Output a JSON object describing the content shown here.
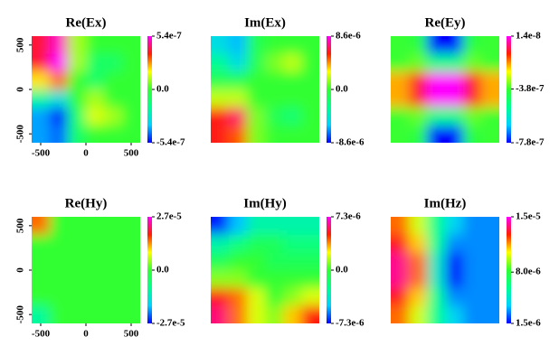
{
  "chart_data": [
    {
      "type": "heatmap",
      "title": "Re(Ex)",
      "xlim": [
        -600,
        600
      ],
      "ylim": [
        -600,
        600
      ],
      "xticks": [
        -500,
        0,
        500
      ],
      "yticks": [
        -500,
        0,
        500
      ],
      "zlim": [
        -5.4e-07,
        5.4e-07
      ],
      "zticks": [
        {
          "value": 5.4e-07,
          "label": "5.4e-7"
        },
        {
          "value": 0,
          "label": "0.0"
        },
        {
          "value": -5.4e-07,
          "label": "-5.4e-7"
        }
      ],
      "colormap": [
        "#0000ff",
        "#00d0ff",
        "#00ff90",
        "#33ff33",
        "#ffff00",
        "#ff2000",
        "#ff00ff"
      ],
      "z": [
        [
          4e-07,
          5e-07,
          1e-07,
          0,
          0,
          0
        ],
        [
          4e-07,
          5.4e-07,
          1e-07,
          -1e-07,
          -1e-07,
          0
        ],
        [
          2e-07,
          3e-07,
          0,
          -1e-07,
          0,
          0
        ],
        [
          -2e-07,
          -3e-07,
          0,
          1e-07,
          0,
          0
        ],
        [
          -4e-07,
          -5.4e-07,
          -1e-07,
          1.5e-07,
          1e-07,
          0
        ],
        [
          -4e-07,
          -4.5e-07,
          -1e-07,
          0,
          0,
          0
        ]
      ]
    },
    {
      "type": "heatmap",
      "title": "Im(Ex)",
      "zlim": [
        -8.6e-06,
        8.6e-06
      ],
      "zticks": [
        {
          "value": 8.6e-06,
          "label": "8.6e-6"
        },
        {
          "value": 0,
          "label": "0.0"
        },
        {
          "value": -8.6e-06,
          "label": "-8.6e-6"
        }
      ],
      "colormap": [
        "#0000ff",
        "#00d0ff",
        "#00ff90",
        "#33ff33",
        "#ffff00",
        "#ff2000",
        "#ff00ff"
      ],
      "z": [
        [
          -5e-06,
          -6e-06,
          -1e-06,
          0,
          0,
          0
        ],
        [
          -3e-06,
          -5e-06,
          -1e-06,
          1e-06,
          2e-06,
          0
        ],
        [
          -1e-06,
          -1e-06,
          0,
          0,
          0,
          0
        ],
        [
          2e-06,
          2e-06,
          0,
          0,
          0,
          0
        ],
        [
          6e-06,
          7e-06,
          1e-06,
          -1e-06,
          -2e-06,
          0
        ],
        [
          6e-06,
          5e-06,
          1e-06,
          0,
          0,
          0
        ]
      ]
    },
    {
      "type": "heatmap",
      "title": "Re(Ey)",
      "zlim": [
        -7.8e-07,
        1.4e-08
      ],
      "zticks": [
        {
          "value": 1.4e-08,
          "label": "1.4e-8"
        },
        {
          "value": -3.8e-07,
          "label": "-3.8e-7"
        },
        {
          "value": -7.8e-07,
          "label": "-7.8e-7"
        }
      ],
      "colormap": [
        "#0000ff",
        "#00d0ff",
        "#00ff90",
        "#33ff33",
        "#ffff00",
        "#ff2000",
        "#ff00ff"
      ],
      "z": [
        [
          -3.8e-07,
          -4e-07,
          -7.8e-07,
          -7.8e-07,
          -4e-07,
          -3.8e-07
        ],
        [
          -3.8e-07,
          -3.5e-07,
          -5e-07,
          -5e-07,
          -3.5e-07,
          -3.8e-07
        ],
        [
          -2e-07,
          -1e-07,
          1.4e-08,
          1.4e-08,
          -1e-07,
          -2e-07
        ],
        [
          -2e-07,
          -1e-07,
          1.4e-08,
          1.4e-08,
          -1e-07,
          -2e-07
        ],
        [
          -3.8e-07,
          -3.5e-07,
          -5e-07,
          -5e-07,
          -3.5e-07,
          -3.8e-07
        ],
        [
          -3.8e-07,
          -4e-07,
          -7.8e-07,
          -7.8e-07,
          -4e-07,
          -3.8e-07
        ]
      ]
    },
    {
      "type": "heatmap",
      "title": "Re(Hy)",
      "xlim": [
        -600,
        600
      ],
      "ylim": [
        -600,
        600
      ],
      "xticks": [
        -500,
        0,
        500
      ],
      "yticks": [
        -500,
        0,
        500
      ],
      "zlim": [
        -2.7e-05,
        2.7e-05
      ],
      "zticks": [
        {
          "value": 2.7e-05,
          "label": "2.7e-5"
        },
        {
          "value": 0,
          "label": "0.0"
        },
        {
          "value": -2.7e-05,
          "label": "-2.7e-5"
        }
      ],
      "colormap": [
        "#0000ff",
        "#00d0ff",
        "#00ff90",
        "#33ff33",
        "#ffff00",
        "#ff2000",
        "#ff00ff"
      ],
      "z": [
        [
          1.5e-05,
          0,
          0,
          0,
          0,
          0
        ],
        [
          0,
          0,
          0,
          0,
          0,
          0
        ],
        [
          0,
          0,
          0,
          0,
          0,
          0
        ],
        [
          0,
          0,
          0,
          0,
          0,
          0
        ],
        [
          0,
          0,
          0,
          0,
          0,
          0
        ],
        [
          -1e-05,
          0,
          0,
          0,
          0,
          0
        ]
      ]
    },
    {
      "type": "heatmap",
      "title": "Im(Hy)",
      "zlim": [
        -7.3e-06,
        7.3e-06
      ],
      "zticks": [
        {
          "value": 7.3e-06,
          "label": "7.3e-6"
        },
        {
          "value": 0,
          "label": "0.0"
        },
        {
          "value": -7.3e-06,
          "label": "-7.3e-6"
        }
      ],
      "colormap": [
        "#0000ff",
        "#00d0ff",
        "#00ff90",
        "#33ff33",
        "#ffff00",
        "#ff2000",
        "#ff00ff"
      ],
      "z": [
        [
          -7e-06,
          -5e-06,
          -3e-06,
          -3e-06,
          -3e-06,
          -3e-06
        ],
        [
          -3e-06,
          -2e-06,
          -1e-06,
          -1e-06,
          -2e-06,
          -2e-06
        ],
        [
          -1e-06,
          0,
          0,
          -1e-06,
          -1e-06,
          -1e-06
        ],
        [
          1e-06,
          1e-06,
          0,
          0,
          0,
          0
        ],
        [
          5e-06,
          4e-06,
          2e-06,
          0,
          1e-06,
          2e-06
        ],
        [
          6e-06,
          4e-06,
          2e-06,
          1e-06,
          3e-06,
          5e-06
        ]
      ]
    },
    {
      "type": "heatmap",
      "title": "Im(Hz)",
      "zlim": [
        1.5e-06,
        1.5e-05
      ],
      "zticks": [
        {
          "value": 1.5e-05,
          "label": "1.5e-5"
        },
        {
          "value": 8e-06,
          "label": "8.0e-6"
        },
        {
          "value": 1.5e-06,
          "label": "1.5e-6"
        }
      ],
      "colormap": [
        "#0000ff",
        "#00d0ff",
        "#00ff90",
        "#33ff33",
        "#ffff00",
        "#ff2000",
        "#ff00ff"
      ],
      "z": [
        [
          1.2e-05,
          1e-05,
          6e-06,
          4e-06,
          3e-06,
          3e-06
        ],
        [
          1.3e-05,
          1.1e-05,
          6e-06,
          3e-06,
          3e-06,
          3e-06
        ],
        [
          1.4e-05,
          1.2e-05,
          5e-06,
          1.5e-06,
          3e-06,
          3e-06
        ],
        [
          1.4e-05,
          1.2e-05,
          5e-06,
          1.5e-06,
          3e-06,
          3e-06
        ],
        [
          1.3e-05,
          1.1e-05,
          6e-06,
          3e-06,
          3e-06,
          3e-06
        ],
        [
          1.2e-05,
          1e-05,
          6e-06,
          4e-06,
          3e-06,
          3e-06
        ]
      ]
    }
  ]
}
